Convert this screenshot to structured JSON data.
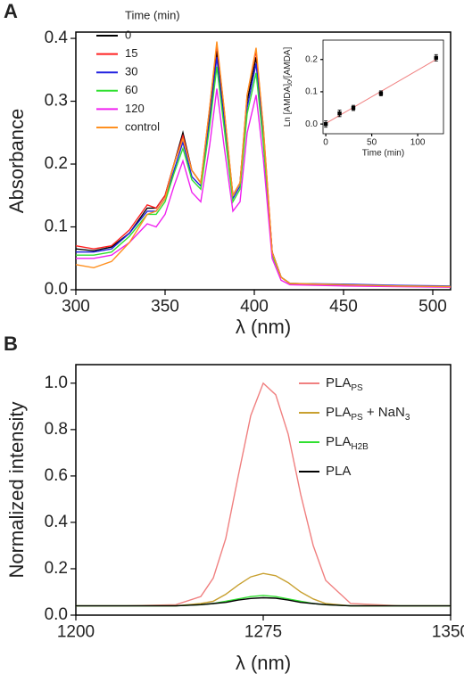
{
  "chart_data": [
    {
      "type": "line",
      "panel_label": "A",
      "x_label": "λ (nm)",
      "y_label": "Absorbance",
      "legend_title": "Time (min)",
      "x": [
        300,
        310,
        320,
        330,
        340,
        345,
        350,
        355,
        360,
        365,
        370,
        375,
        379,
        383,
        388,
        392,
        396,
        401,
        405,
        410,
        415,
        420,
        450,
        480,
        510
      ],
      "xlim": [
        300,
        510
      ],
      "xticks": [
        300,
        350,
        400,
        450,
        500
      ],
      "ylim": [
        0,
        0.41
      ],
      "yticks": [
        {
          "value": 0,
          "label": "0.0"
        },
        0.1,
        0.2,
        0.3,
        0.4
      ],
      "series": [
        {
          "name": "0",
          "color": "#000000",
          "values": [
            0.065,
            0.062,
            0.068,
            0.09,
            0.13,
            0.13,
            0.15,
            0.2,
            0.25,
            0.19,
            0.17,
            0.28,
            0.38,
            0.28,
            0.15,
            0.17,
            0.3,
            0.37,
            0.25,
            0.06,
            0.02,
            0.01,
            0.008,
            0.006,
            0.005
          ]
        },
        {
          "name": "15",
          "color": "#ff2020",
          "values": [
            0.07,
            0.065,
            0.07,
            0.095,
            0.135,
            0.13,
            0.15,
            0.2,
            0.245,
            0.19,
            0.17,
            0.29,
            0.39,
            0.29,
            0.15,
            0.17,
            0.31,
            0.38,
            0.26,
            0.06,
            0.02,
            0.01,
            0.008,
            0.006,
            0.005
          ]
        },
        {
          "name": "30",
          "color": "#2020e0",
          "values": [
            0.06,
            0.06,
            0.065,
            0.09,
            0.125,
            0.125,
            0.145,
            0.19,
            0.235,
            0.18,
            0.165,
            0.27,
            0.37,
            0.27,
            0.145,
            0.165,
            0.29,
            0.36,
            0.245,
            0.06,
            0.02,
            0.01,
            0.009,
            0.007,
            0.006
          ]
        },
        {
          "name": "60",
          "color": "#30e030",
          "values": [
            0.055,
            0.055,
            0.06,
            0.085,
            0.12,
            0.12,
            0.14,
            0.185,
            0.225,
            0.175,
            0.16,
            0.26,
            0.355,
            0.26,
            0.14,
            0.16,
            0.28,
            0.345,
            0.235,
            0.055,
            0.02,
            0.01,
            0.008,
            0.006,
            0.005
          ]
        },
        {
          "name": "120",
          "color": "#f020f0",
          "values": [
            0.05,
            0.05,
            0.055,
            0.075,
            0.105,
            0.1,
            0.12,
            0.165,
            0.205,
            0.155,
            0.14,
            0.23,
            0.32,
            0.23,
            0.125,
            0.14,
            0.25,
            0.31,
            0.21,
            0.05,
            0.015,
            0.008,
            0.006,
            0.005,
            0.004
          ]
        },
        {
          "name": "control",
          "color": "#ff9020",
          "values": [
            0.04,
            0.035,
            0.045,
            0.075,
            0.12,
            0.125,
            0.145,
            0.2,
            0.24,
            0.19,
            0.17,
            0.29,
            0.395,
            0.29,
            0.15,
            0.17,
            0.31,
            0.385,
            0.26,
            0.06,
            0.02,
            0.01,
            0.008,
            0.006,
            0.005
          ]
        }
      ]
    },
    {
      "type": "scatter",
      "x_label": "Time (min)",
      "y_label": [
        {
          "t": "Ln [AMDA]"
        },
        {
          "t": "0",
          "sub": true
        },
        {
          "t": "/[AMDA]"
        }
      ],
      "x": [
        0,
        15,
        30,
        60,
        120
      ],
      "values": [
        0,
        0.033,
        0.05,
        0.095,
        0.205
      ],
      "errors": [
        0.01,
        0.01,
        0.008,
        0.008,
        0.01
      ],
      "color": "#000000",
      "fit": {
        "x": [
          0,
          120
        ],
        "values": [
          0.002,
          0.2
        ],
        "color": "#f08080"
      },
      "xlim": [
        -3,
        128
      ],
      "xticks": [
        0,
        50,
        100
      ],
      "ylim": [
        -0.03,
        0.26
      ],
      "yticks": [
        {
          "value": 0,
          "label": "0.0"
        },
        0.1,
        0.2
      ]
    },
    {
      "type": "line",
      "panel_label": "B",
      "x_label": "λ (nm)",
      "y_label": "Normalized intensity",
      "x": [
        1200,
        1220,
        1240,
        1250,
        1255,
        1260,
        1265,
        1270,
        1275,
        1280,
        1285,
        1290,
        1295,
        1300,
        1310,
        1330,
        1350
      ],
      "xlim": [
        1200,
        1350
      ],
      "xticks": [
        1200,
        1275,
        1350
      ],
      "ylim": [
        0,
        1.08
      ],
      "yticks": [
        {
          "value": 0,
          "label": "0.0"
        },
        0.2,
        0.4,
        0.6,
        0.8,
        {
          "value": 1,
          "label": "1.0"
        }
      ],
      "series": [
        {
          "name": [
            {
              "t": "PLA"
            },
            {
              "t": "PS",
              "sub": true
            }
          ],
          "color": "#f08080",
          "values": [
            0.04,
            0.04,
            0.045,
            0.08,
            0.16,
            0.33,
            0.6,
            0.86,
            1.0,
            0.95,
            0.78,
            0.52,
            0.3,
            0.15,
            0.05,
            0.04,
            0.04
          ]
        },
        {
          "name": [
            {
              "t": "PLA"
            },
            {
              "t": "PS",
              "sub": true
            },
            {
              "t": " + NaN"
            },
            {
              "t": "3",
              "sub": true
            }
          ],
          "color": "#c8a030",
          "values": [
            0.04,
            0.04,
            0.04,
            0.05,
            0.06,
            0.09,
            0.13,
            0.165,
            0.18,
            0.17,
            0.14,
            0.1,
            0.07,
            0.05,
            0.04,
            0.04,
            0.04
          ]
        },
        {
          "name": [
            {
              "t": "PLA"
            },
            {
              "t": "H2B",
              "sub": true
            }
          ],
          "color": "#30e030",
          "values": [
            0.04,
            0.04,
            0.04,
            0.045,
            0.05,
            0.06,
            0.07,
            0.08,
            0.085,
            0.08,
            0.07,
            0.06,
            0.05,
            0.045,
            0.04,
            0.04,
            0.04
          ]
        },
        {
          "name": [
            {
              "t": "PLA"
            }
          ],
          "color": "#000000",
          "values": [
            0.04,
            0.04,
            0.04,
            0.045,
            0.05,
            0.055,
            0.065,
            0.072,
            0.075,
            0.073,
            0.065,
            0.055,
            0.05,
            0.045,
            0.04,
            0.04,
            0.04
          ]
        }
      ]
    }
  ]
}
